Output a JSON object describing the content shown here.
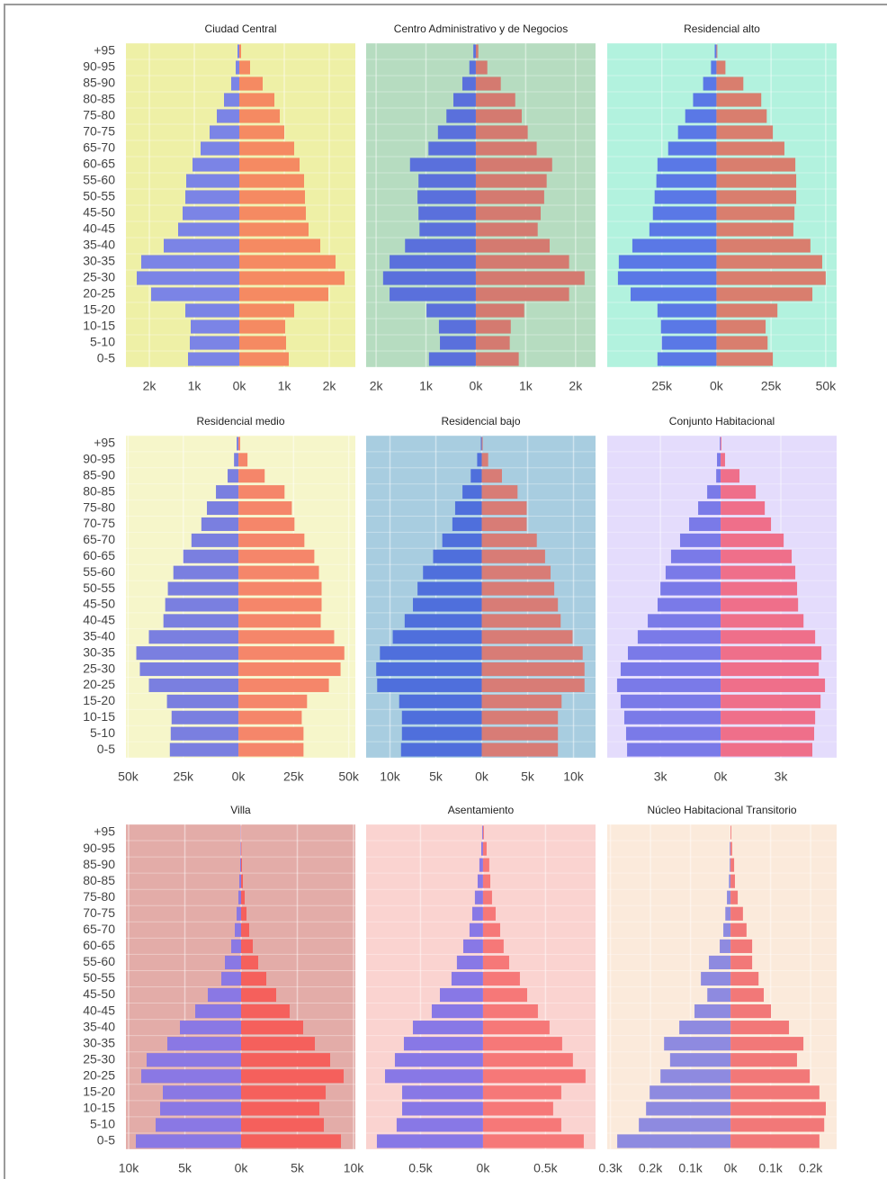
{
  "chart_data": [
    {
      "type": "bar",
      "title": "Ciudad Central",
      "background": "#eef0a6",
      "categories": [
        "+95",
        "90-95",
        "85-90",
        "80-85",
        "75-80",
        "70-75",
        "65-70",
        "60-65",
        "55-60",
        "50-55",
        "45-50",
        "40-45",
        "35-40",
        "30-35",
        "25-30",
        "20-25",
        "15-20",
        "10-15",
        "5-10",
        "0-5"
      ],
      "xlim": [
        -2520,
        2580
      ],
      "xticks": [
        {
          "value": -2000,
          "label": "2k"
        },
        {
          "value": -1000,
          "label": "1k"
        },
        {
          "value": 0,
          "label": "0k"
        },
        {
          "value": 1000,
          "label": "1k"
        },
        {
          "value": 2000,
          "label": "2k"
        }
      ],
      "series": [
        {
          "color": "#7b84e6",
          "values": [
            -40,
            -80,
            -180,
            -340,
            -500,
            -660,
            -860,
            -1040,
            -1180,
            -1200,
            -1260,
            -1360,
            -1680,
            -2180,
            -2280,
            -1960,
            -1200,
            -1080,
            -1100,
            -1140
          ]
        },
        {
          "color": "#f58a62",
          "values": [
            40,
            240,
            520,
            780,
            900,
            1000,
            1220,
            1340,
            1440,
            1460,
            1480,
            1540,
            1800,
            2140,
            2340,
            1980,
            1220,
            1020,
            1040,
            1100
          ]
        }
      ]
    },
    {
      "type": "bar",
      "title": "Centro Administrativo y de Negocios",
      "background": "#b6dcc0",
      "xlim": [
        -2200,
        2400
      ],
      "xticks": [
        {
          "value": -2000,
          "label": "2k"
        },
        {
          "value": -1000,
          "label": "1k"
        },
        {
          "value": 0,
          "label": "0k"
        },
        {
          "value": 1000,
          "label": "1k"
        },
        {
          "value": 2000,
          "label": "2k"
        }
      ],
      "series": [
        {
          "color": "#5a70dc",
          "values": [
            -50,
            -130,
            -270,
            -450,
            -590,
            -760,
            -950,
            -1320,
            -1150,
            -1170,
            -1150,
            -1130,
            -1420,
            -1730,
            -1860,
            -1730,
            -990,
            -740,
            -720,
            -940
          ]
        },
        {
          "color": "#d47a70",
          "values": [
            50,
            230,
            500,
            790,
            920,
            1040,
            1220,
            1530,
            1420,
            1370,
            1300,
            1240,
            1480,
            1870,
            2180,
            1870,
            970,
            700,
            680,
            860
          ]
        }
      ]
    },
    {
      "type": "bar",
      "title": "Residencial alto",
      "background": "#b2f2de",
      "xlim": [
        -50000,
        55000
      ],
      "xticks": [
        {
          "value": -25000,
          "label": "25k"
        },
        {
          "value": 0,
          "label": "0k"
        },
        {
          "value": 25000,
          "label": "25k"
        },
        {
          "value": 50000,
          "label": "50k"
        }
      ],
      "series": [
        {
          "color": "#5a78e6",
          "values": [
            -800,
            -2500,
            -6100,
            -10700,
            -14300,
            -17600,
            -22100,
            -27000,
            -27500,
            -28300,
            -29100,
            -30700,
            -38500,
            -44700,
            -45100,
            -39300,
            -27000,
            -25400,
            -25000,
            -27000
          ]
        },
        {
          "color": "#d97e6e",
          "values": [
            400,
            4100,
            12300,
            20500,
            23000,
            25800,
            31100,
            36100,
            36500,
            36500,
            35700,
            35200,
            43000,
            48400,
            50000,
            43900,
            27900,
            22500,
            23400,
            25800
          ]
        }
      ]
    },
    {
      "type": "bar",
      "title": "Residencial medio",
      "background": "#f6f6ca",
      "categories": [
        "+95",
        "90-95",
        "85-90",
        "80-85",
        "75-80",
        "70-75",
        "65-70",
        "60-65",
        "55-60",
        "50-55",
        "45-50",
        "40-45",
        "35-40",
        "30-35",
        "25-30",
        "20-25",
        "15-20",
        "10-15",
        "5-10",
        "0-5"
      ],
      "xlim": [
        -51000,
        53000
      ],
      "xticks": [
        {
          "value": -50000,
          "label": "50k"
        },
        {
          "value": -25000,
          "label": "25k"
        },
        {
          "value": 0,
          "label": "0k"
        },
        {
          "value": 25000,
          "label": "25k"
        },
        {
          "value": 50000,
          "label": "50k"
        }
      ],
      "series": [
        {
          "color": "#7a7fe0",
          "values": [
            -800,
            -2000,
            -4900,
            -10200,
            -14300,
            -16800,
            -21300,
            -25000,
            -29500,
            -32000,
            -33200,
            -34000,
            -40600,
            -46300,
            -44700,
            -40600,
            -32400,
            -30300,
            -30700,
            -31100
          ]
        },
        {
          "color": "#f5866a",
          "values": [
            800,
            4100,
            11900,
            20900,
            24200,
            25400,
            29900,
            34400,
            36500,
            37700,
            37700,
            37300,
            43400,
            48000,
            46300,
            41000,
            31100,
            28700,
            29500,
            29500
          ]
        }
      ]
    },
    {
      "type": "bar",
      "title": "Residencial bajo",
      "background": "#a8cde0",
      "xlim": [
        -12600,
        12400
      ],
      "xticks": [
        {
          "value": -10000,
          "label": "10k"
        },
        {
          "value": -5000,
          "label": "5k"
        },
        {
          "value": 0,
          "label": "0k"
        },
        {
          "value": 5000,
          "label": "5k"
        },
        {
          "value": 10000,
          "label": "10k"
        }
      ],
      "series": [
        {
          "color": "#4f6fdc",
          "values": [
            -100,
            -500,
            -1200,
            -2100,
            -2900,
            -3200,
            -4300,
            -5300,
            -6400,
            -7000,
            -7500,
            -8400,
            -9700,
            -11100,
            -11500,
            -11400,
            -9000,
            -8700,
            -8700,
            -8800
          ]
        },
        {
          "color": "#d87c76",
          "values": [
            100,
            700,
            2200,
            3900,
            4900,
            4900,
            6000,
            6900,
            7500,
            7900,
            8300,
            8600,
            9900,
            11000,
            11200,
            11200,
            8700,
            8300,
            8300,
            8300
          ]
        }
      ]
    },
    {
      "type": "bar",
      "title": "Conjunto Habitacional",
      "background": "#e4dcfc",
      "xlim": [
        -5650,
        5780
      ],
      "xticks": [
        {
          "value": -3000,
          "label": "3k"
        },
        {
          "value": 0,
          "label": "0k"
        },
        {
          "value": 3000,
          "label": "3k"
        }
      ],
      "series": [
        {
          "color": "#7a7ae8",
          "values": [
            -40,
            -180,
            -220,
            -670,
            -1120,
            -1570,
            -2020,
            -2470,
            -2740,
            -3000,
            -3140,
            -3630,
            -4130,
            -4620,
            -4980,
            -5160,
            -4980,
            -4800,
            -4710,
            -4660
          ]
        },
        {
          "color": "#ef6f8a",
          "values": [
            40,
            220,
            940,
            1750,
            2200,
            2510,
            3140,
            3540,
            3720,
            3810,
            3860,
            4130,
            4710,
            5020,
            4890,
            5200,
            4980,
            4710,
            4660,
            4570
          ]
        }
      ]
    },
    {
      "type": "bar",
      "title": "Villa",
      "background": "#e3aca8",
      "categories": [
        "+95",
        "90-95",
        "85-90",
        "80-85",
        "75-80",
        "70-75",
        "65-70",
        "60-65",
        "55-60",
        "50-55",
        "45-50",
        "40-45",
        "35-40",
        "30-35",
        "25-30",
        "20-25",
        "15-20",
        "10-15",
        "5-10",
        "0-5"
      ],
      "xlim": [
        -10240,
        10160
      ],
      "xticks": [
        {
          "value": -10000,
          "label": "10k"
        },
        {
          "value": -5000,
          "label": "5k"
        },
        {
          "value": 0,
          "label": "0k"
        },
        {
          "value": 5000,
          "label": "5k"
        },
        {
          "value": 10000,
          "label": "10k"
        }
      ],
      "series": [
        {
          "color": "#8a78e4",
          "values": [
            -20,
            -40,
            -80,
            -160,
            -240,
            -400,
            -560,
            -880,
            -1440,
            -1760,
            -2960,
            -4080,
            -5440,
            -6560,
            -8400,
            -8880,
            -6960,
            -7200,
            -7600,
            -9360
          ]
        },
        {
          "color": "#f5605c",
          "values": [
            20,
            40,
            80,
            160,
            320,
            480,
            720,
            1040,
            1520,
            2240,
            3120,
            4320,
            5520,
            6560,
            7920,
            9120,
            7520,
            6960,
            7360,
            8880
          ]
        }
      ]
    },
    {
      "type": "bar",
      "title": "Asentamiento",
      "background": "#fad3d0",
      "xlim": [
        -935,
        900
      ],
      "xticks": [
        {
          "value": -500,
          "label": "0.5k"
        },
        {
          "value": 0,
          "label": "0k"
        },
        {
          "value": 500,
          "label": "0.5k"
        }
      ],
      "series": [
        {
          "color": "#8878e6",
          "values": [
            -7,
            -14,
            -29,
            -43,
            -65,
            -86,
            -108,
            -158,
            -209,
            -252,
            -345,
            -410,
            -561,
            -633,
            -705,
            -784,
            -647,
            -647,
            -691,
            -849
          ]
        },
        {
          "color": "#f67878",
          "values": [
            7,
            29,
            50,
            58,
            72,
            101,
            137,
            165,
            209,
            295,
            353,
            439,
            532,
            633,
            719,
            820,
            626,
            561,
            626,
            806
          ]
        }
      ]
    },
    {
      "type": "bar",
      "title": "Núcleo Habitacional Transitorio",
      "background": "#fbeadb",
      "xlim": [
        -308,
        265
      ],
      "xticks": [
        {
          "value": -300,
          "label": "0.3k"
        },
        {
          "value": -200,
          "label": "0.2k"
        },
        {
          "value": -100,
          "label": "0.1k"
        },
        {
          "value": 0,
          "label": "0k"
        },
        {
          "value": 100,
          "label": "0.1k"
        },
        {
          "value": 200,
          "label": "0.2k"
        }
      ],
      "series": [
        {
          "color": "#8e8ae0",
          "values": [
            0,
            -2,
            -2,
            -4,
            -9,
            -13,
            -18,
            -27,
            -54,
            -74,
            -58,
            -90,
            -128,
            -166,
            -151,
            -175,
            -202,
            -211,
            -229,
            -283
          ]
        },
        {
          "color": "#f27878",
          "values": [
            2,
            4,
            9,
            11,
            18,
            31,
            40,
            54,
            54,
            70,
            83,
            101,
            146,
            182,
            166,
            198,
            222,
            238,
            234,
            222
          ]
        }
      ]
    }
  ]
}
